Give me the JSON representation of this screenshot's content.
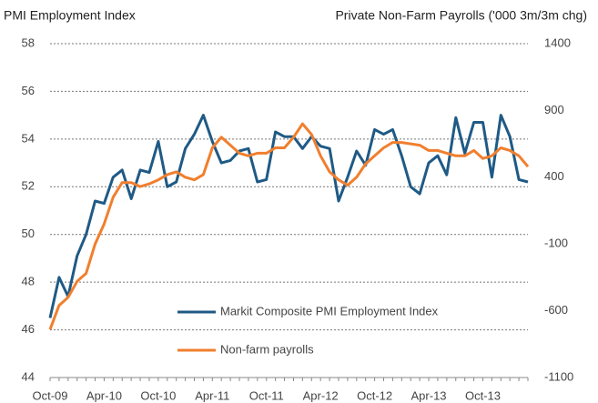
{
  "chart_data": {
    "type": "line",
    "title": "PMI Employment Index",
    "y2_title": "Private Non-Farm Payrolls ('000 3m/3m chg)",
    "categories": [
      "Oct-09",
      null,
      null,
      null,
      null,
      null,
      "Apr-10",
      null,
      null,
      null,
      null,
      null,
      "Oct-10",
      null,
      null,
      null,
      null,
      null,
      "Apr-11",
      null,
      null,
      null,
      null,
      null,
      "Oct-11",
      null,
      null,
      null,
      null,
      null,
      "Apr-12",
      null,
      null,
      null,
      null,
      null,
      "Oct-12",
      null,
      null,
      null,
      null,
      null,
      "Apr-13",
      null,
      null,
      null,
      null,
      null,
      "Oct-13",
      null,
      null,
      null,
      null,
      null
    ],
    "series": [
      {
        "name": "Markit Composite PMI Employment Index",
        "color": "#1f5a85",
        "axis": "y",
        "values": [
          46.5,
          48.2,
          47.4,
          49.1,
          50.0,
          51.4,
          51.3,
          52.4,
          52.7,
          51.5,
          52.7,
          52.6,
          53.9,
          52.0,
          52.2,
          53.6,
          54.2,
          55.0,
          53.9,
          53.0,
          53.1,
          53.5,
          53.6,
          52.2,
          52.3,
          54.3,
          54.1,
          54.1,
          53.6,
          54.1,
          53.7,
          53.6,
          51.4,
          52.4,
          53.5,
          52.9,
          54.4,
          54.2,
          54.4,
          53.3,
          52.0,
          51.7,
          53.0,
          53.3,
          52.5,
          54.9,
          53.4,
          54.7,
          54.7,
          52.4,
          55.0,
          54.1,
          52.3,
          52.2
        ]
      },
      {
        "name": "Non-farm payrolls",
        "color": "#f07f2e",
        "axis": "y2",
        "values": [
          -740,
          -560,
          -500,
          -380,
          -320,
          -100,
          50,
          250,
          360,
          360,
          330,
          350,
          380,
          420,
          440,
          400,
          380,
          420,
          620,
          700,
          640,
          580,
          560,
          580,
          580,
          620,
          620,
          700,
          800,
          720,
          560,
          440,
          380,
          340,
          400,
          500,
          560,
          620,
          660,
          660,
          650,
          640,
          600,
          600,
          580,
          560,
          560,
          600,
          540,
          560,
          620,
          600,
          560,
          480
        ]
      }
    ],
    "ylim": [
      44,
      58
    ],
    "yticks": [
      44,
      46,
      48,
      50,
      52,
      54,
      56,
      58
    ],
    "y2lim": [
      -1100,
      1400
    ],
    "y2ticks": [
      -1100,
      -600,
      -100,
      400,
      900,
      1400
    ],
    "grid": true
  }
}
